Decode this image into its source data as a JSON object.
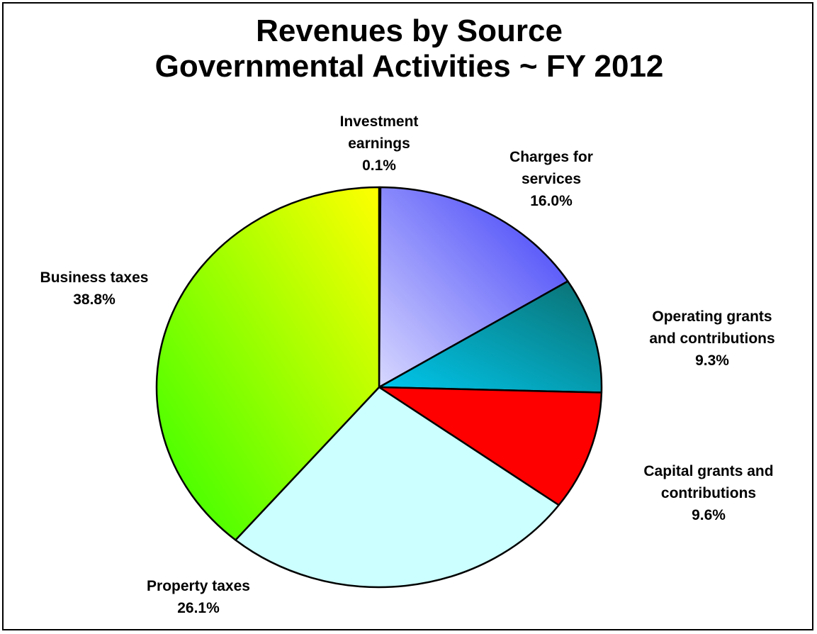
{
  "chart_data": {
    "type": "pie",
    "title_line1": "Revenues by Source",
    "title_line2": "Governmental Activities ~ FY 2012",
    "slices": [
      {
        "name": "Investment earnings",
        "label_lines": [
          "Investment",
          "earnings",
          "0.1%"
        ],
        "value": 0.1,
        "colors": [
          "#cfcfcf",
          "#404040"
        ]
      },
      {
        "name": "Charges for services",
        "label_lines": [
          "Charges for",
          "services",
          "16.0%"
        ],
        "value": 16.0,
        "colors": [
          "#d8d8ff",
          "#3a3af8"
        ]
      },
      {
        "name": "Operating grants and contributions",
        "label_lines": [
          "Operating grants",
          "and contributions",
          "9.3%"
        ],
        "value": 9.3,
        "colors": [
          "#00c8ee",
          "#0b6f70"
        ]
      },
      {
        "name": "Capital grants and contributions",
        "label_lines": [
          "Capital grants and",
          "contributions",
          "9.6%"
        ],
        "value": 9.6,
        "colors": [
          "#ff0000",
          "#ff0000"
        ]
      },
      {
        "name": "Property taxes",
        "label_lines": [
          "Property taxes",
          "26.1%"
        ],
        "value": 26.1,
        "colors": [
          "#ccffff",
          "#ccffff"
        ]
      },
      {
        "name": "Business taxes",
        "label_lines": [
          "Business taxes",
          "38.8%"
        ],
        "value": 38.8,
        "colors": [
          "#33ff00",
          "#ffff00"
        ]
      }
    ]
  }
}
